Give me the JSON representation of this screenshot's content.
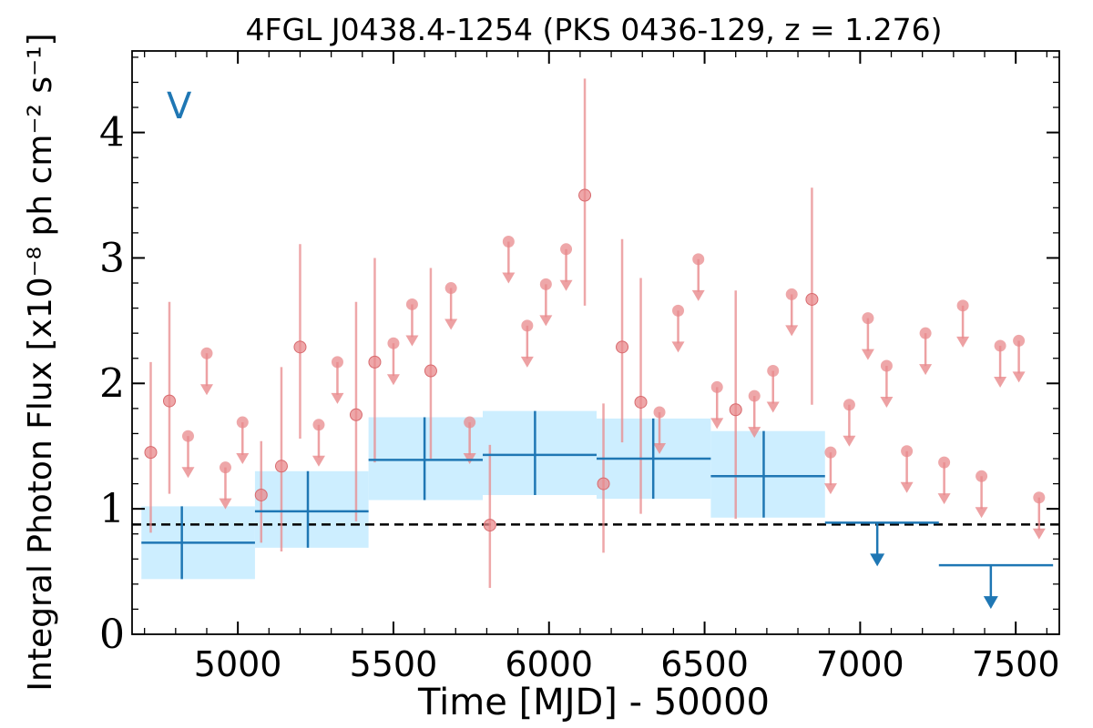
{
  "chart_data": {
    "type": "scatter",
    "title": "4FGL J0438.4-1254 (PKS 0436-129, z = 1.276)",
    "xlabel": "Time [MJD] - 50000",
    "ylabel": "Integral Photon Flux [x10⁻⁸ ph cm⁻² s⁻¹]",
    "xlim": [
      4660,
      7640
    ],
    "ylim": [
      0,
      4.65
    ],
    "x_ticks": [
      5000,
      5500,
      6000,
      6500,
      7000,
      7500
    ],
    "y_ticks": [
      0,
      1,
      2,
      3,
      4
    ],
    "x_tick_labels": [
      "5000",
      "5500",
      "6000",
      "6500",
      "7000",
      "7500"
    ],
    "y_tick_labels": [
      "0",
      "1",
      "2",
      "3",
      "4"
    ],
    "panel_label": "V",
    "mean_flux_line": 0.875,
    "colors": {
      "short_bins": "#e8898c",
      "long_bins": "#1f77b4",
      "long_bins_band": "#cdeeff",
      "mean_line": "#000000"
    },
    "series": [
      {
        "kind": "short-bin-detections",
        "points": [
          {
            "x": 4720,
            "y": 1.45,
            "lo": 0.81,
            "hi": 2.17
          },
          {
            "x": 4780,
            "y": 1.86,
            "lo": 1.12,
            "hi": 2.65
          },
          {
            "x": 5075,
            "y": 1.11,
            "lo": 0.73,
            "hi": 1.54
          },
          {
            "x": 5140,
            "y": 1.34,
            "lo": 0.66,
            "hi": 2.13
          },
          {
            "x": 5200,
            "y": 2.29,
            "lo": 1.56,
            "hi": 3.11
          },
          {
            "x": 5380,
            "y": 1.75,
            "lo": 0.9,
            "hi": 2.65
          },
          {
            "x": 5440,
            "y": 2.17,
            "lo": 1.37,
            "hi": 3.0
          },
          {
            "x": 5620,
            "y": 2.1,
            "lo": 1.4,
            "hi": 2.92
          },
          {
            "x": 5810,
            "y": 0.87,
            "lo": 0.37,
            "hi": 1.51
          },
          {
            "x": 6115,
            "y": 3.5,
            "lo": 2.62,
            "hi": 4.43
          },
          {
            "x": 6175,
            "y": 1.2,
            "lo": 0.65,
            "hi": 1.84
          },
          {
            "x": 6235,
            "y": 2.29,
            "lo": 1.53,
            "hi": 3.15
          },
          {
            "x": 6295,
            "y": 1.85,
            "lo": 0.96,
            "hi": 2.84
          },
          {
            "x": 6600,
            "y": 1.79,
            "lo": 0.92,
            "hi": 2.74
          },
          {
            "x": 6845,
            "y": 2.67,
            "lo": 1.83,
            "hi": 3.56
          }
        ]
      },
      {
        "kind": "short-bin-upper-limits",
        "points": [
          {
            "x": 4840,
            "y": 1.58
          },
          {
            "x": 4900,
            "y": 2.24
          },
          {
            "x": 4960,
            "y": 1.33
          },
          {
            "x": 5015,
            "y": 1.69
          },
          {
            "x": 5260,
            "y": 1.67
          },
          {
            "x": 5320,
            "y": 2.17
          },
          {
            "x": 5500,
            "y": 2.32
          },
          {
            "x": 5560,
            "y": 2.63
          },
          {
            "x": 5685,
            "y": 2.76
          },
          {
            "x": 5745,
            "y": 1.69
          },
          {
            "x": 5870,
            "y": 3.13
          },
          {
            "x": 5930,
            "y": 2.46
          },
          {
            "x": 5990,
            "y": 2.79
          },
          {
            "x": 6055,
            "y": 3.07
          },
          {
            "x": 6355,
            "y": 1.77
          },
          {
            "x": 6415,
            "y": 2.58
          },
          {
            "x": 6480,
            "y": 2.99
          },
          {
            "x": 6540,
            "y": 1.97
          },
          {
            "x": 6660,
            "y": 1.9
          },
          {
            "x": 6720,
            "y": 2.1
          },
          {
            "x": 6780,
            "y": 2.71
          },
          {
            "x": 6905,
            "y": 1.45
          },
          {
            "x": 6965,
            "y": 1.83
          },
          {
            "x": 7025,
            "y": 2.52
          },
          {
            "x": 7085,
            "y": 2.14
          },
          {
            "x": 7150,
            "y": 1.46
          },
          {
            "x": 7210,
            "y": 2.4
          },
          {
            "x": 7270,
            "y": 1.37
          },
          {
            "x": 7330,
            "y": 2.62
          },
          {
            "x": 7390,
            "y": 1.26
          },
          {
            "x": 7450,
            "y": 2.3
          },
          {
            "x": 7510,
            "y": 2.34
          },
          {
            "x": 7575,
            "y": 1.09
          }
        ]
      },
      {
        "kind": "long-bin-detections",
        "points": [
          {
            "x0": 4690,
            "x1": 5055,
            "xc": 4820,
            "y": 0.73,
            "lo": 0.44,
            "hi": 1.02
          },
          {
            "x0": 5055,
            "x1": 5420,
            "xc": 5225,
            "y": 0.98,
            "lo": 0.69,
            "hi": 1.3
          },
          {
            "x0": 5420,
            "x1": 5787,
            "xc": 5600,
            "y": 1.39,
            "lo": 1.07,
            "hi": 1.73
          },
          {
            "x0": 5787,
            "x1": 6153,
            "xc": 5955,
            "y": 1.43,
            "lo": 1.11,
            "hi": 1.78
          },
          {
            "x0": 6153,
            "x1": 6520,
            "xc": 6335,
            "y": 1.4,
            "lo": 1.08,
            "hi": 1.72
          },
          {
            "x0": 6520,
            "x1": 6887,
            "xc": 6690,
            "y": 1.26,
            "lo": 0.93,
            "hi": 1.62
          }
        ]
      },
      {
        "kind": "long-bin-upper-limits",
        "points": [
          {
            "x0": 6887,
            "x1": 7253,
            "xc": 7055,
            "y": 0.89
          },
          {
            "x0": 7253,
            "x1": 7620,
            "xc": 7420,
            "y": 0.55
          }
        ]
      }
    ]
  }
}
